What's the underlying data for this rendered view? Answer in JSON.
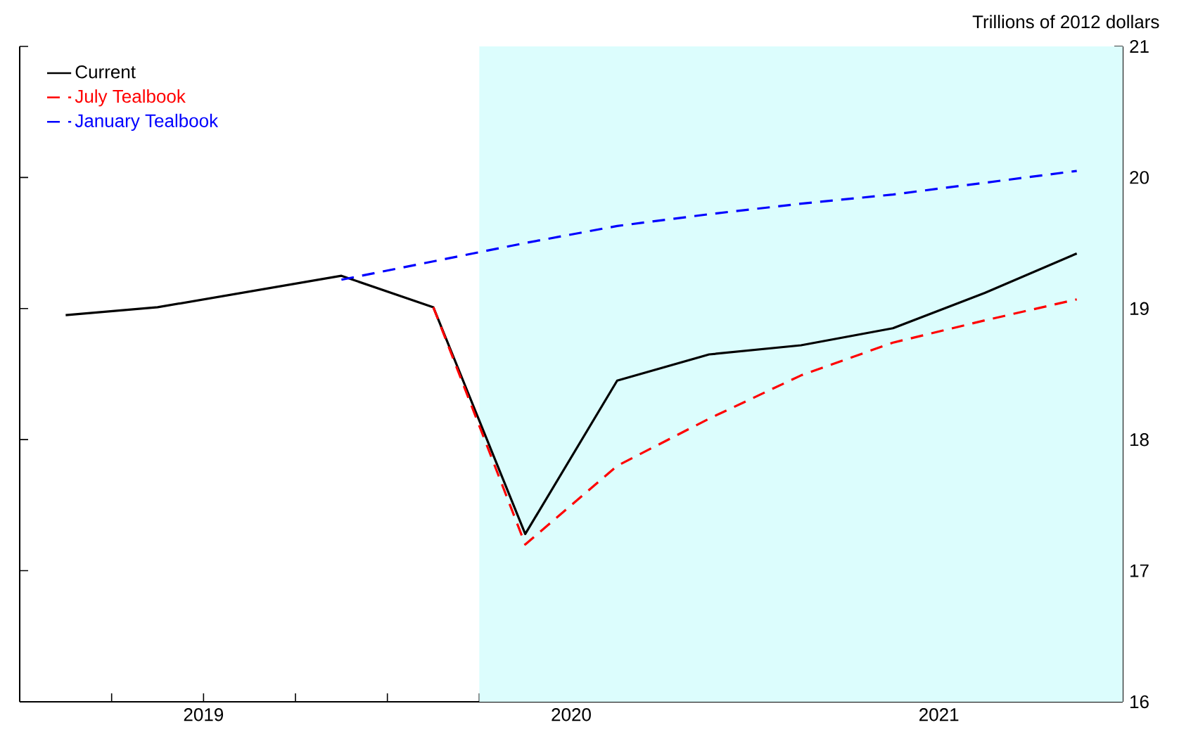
{
  "chart_data": {
    "type": "line",
    "ylabel": "Trillions of 2012 dollars",
    "xlim": [
      2019,
      2022
    ],
    "xticks": [
      {
        "value": 2019.25,
        "label": null
      },
      {
        "value": 2019.5,
        "label": "2019"
      },
      {
        "value": 2019.75,
        "label": null
      },
      {
        "value": 2020,
        "label": null
      },
      {
        "value": 2020.25,
        "label": null
      },
      {
        "value": 2020.5,
        "label": "2020"
      },
      {
        "value": 2020.75,
        "label": null
      },
      {
        "value": 2021,
        "label": null
      },
      {
        "value": 2021.25,
        "label": null
      },
      {
        "value": 2021.5,
        "label": "2021"
      },
      {
        "value": 2021.75,
        "label": null
      }
    ],
    "ylim": [
      16,
      21
    ],
    "yticks": [
      16,
      17,
      18,
      19,
      20,
      21
    ],
    "bands": [
      {
        "axis": "x",
        "from": 2020.25,
        "to": 2022,
        "color": "#dcfdfd"
      }
    ],
    "legend": "top left",
    "grid": false,
    "series": [
      {
        "name": "Current",
        "color": "#000000",
        "line_style": "solid",
        "x": [
          2019.125,
          2019.375,
          2019.625,
          2019.875,
          2020.125,
          2020.375,
          2020.625,
          2020.875,
          2021.125,
          2021.375,
          2021.625,
          2021.875
        ],
        "values": [
          18.95,
          19.01,
          19.13,
          19.25,
          19.01,
          17.28,
          18.45,
          18.65,
          18.72,
          18.85,
          19.12,
          19.42
        ]
      },
      {
        "name": "July Tealbook",
        "color": "#ff0000",
        "line_style": "dashed",
        "x": [
          2020.125,
          2020.375,
          2020.625,
          2020.875,
          2021.125,
          2021.375,
          2021.625,
          2021.875
        ],
        "values": [
          19.01,
          17.2,
          17.8,
          18.16,
          18.49,
          18.74,
          18.91,
          19.07
        ]
      },
      {
        "name": "January Tealbook",
        "color": "#0000ff",
        "line_style": "dashed",
        "x": [
          2019.875,
          2020.125,
          2020.375,
          2020.625,
          2020.875,
          2021.125,
          2021.375,
          2021.625,
          2021.875
        ],
        "values": [
          19.22,
          19.36,
          19.5,
          19.63,
          19.72,
          19.8,
          19.87,
          19.96,
          20.05
        ]
      }
    ]
  }
}
